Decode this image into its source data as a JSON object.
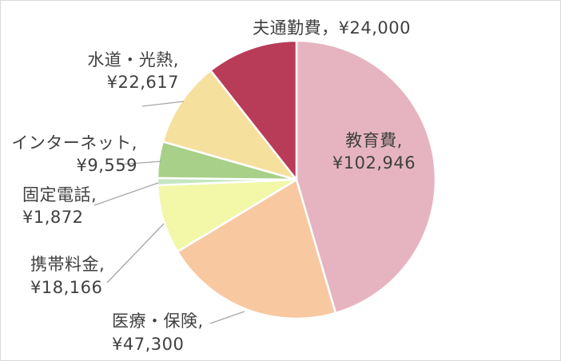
{
  "chart_data": {
    "type": "pie",
    "title": "",
    "categories": [
      "教育費",
      "医療・保険",
      "携帯料金",
      "固定電話",
      "インターネット",
      "水道・光熱",
      "夫通勤費"
    ],
    "values": [
      102946,
      47300,
      18166,
      1872,
      9559,
      22617,
      24000
    ],
    "value_labels": [
      "¥102,946",
      "¥47,300",
      "¥18,166",
      "¥1,872",
      "¥9,559",
      "¥22,617",
      "¥24,000"
    ],
    "label_texts": [
      "教育費,",
      "医療・保険,",
      "携帯料金,",
      "固定電話,",
      "インターネット,",
      "水道・光熱,",
      "夫通勤費，"
    ],
    "colors": [
      "#E6B4C0",
      "#F8C8A0",
      "#F2F8A8",
      "#C4E6C0",
      "#A8D088",
      "#F5E09E",
      "#B83C58"
    ],
    "legend": "none",
    "data_labels": "outside with leader lines"
  }
}
